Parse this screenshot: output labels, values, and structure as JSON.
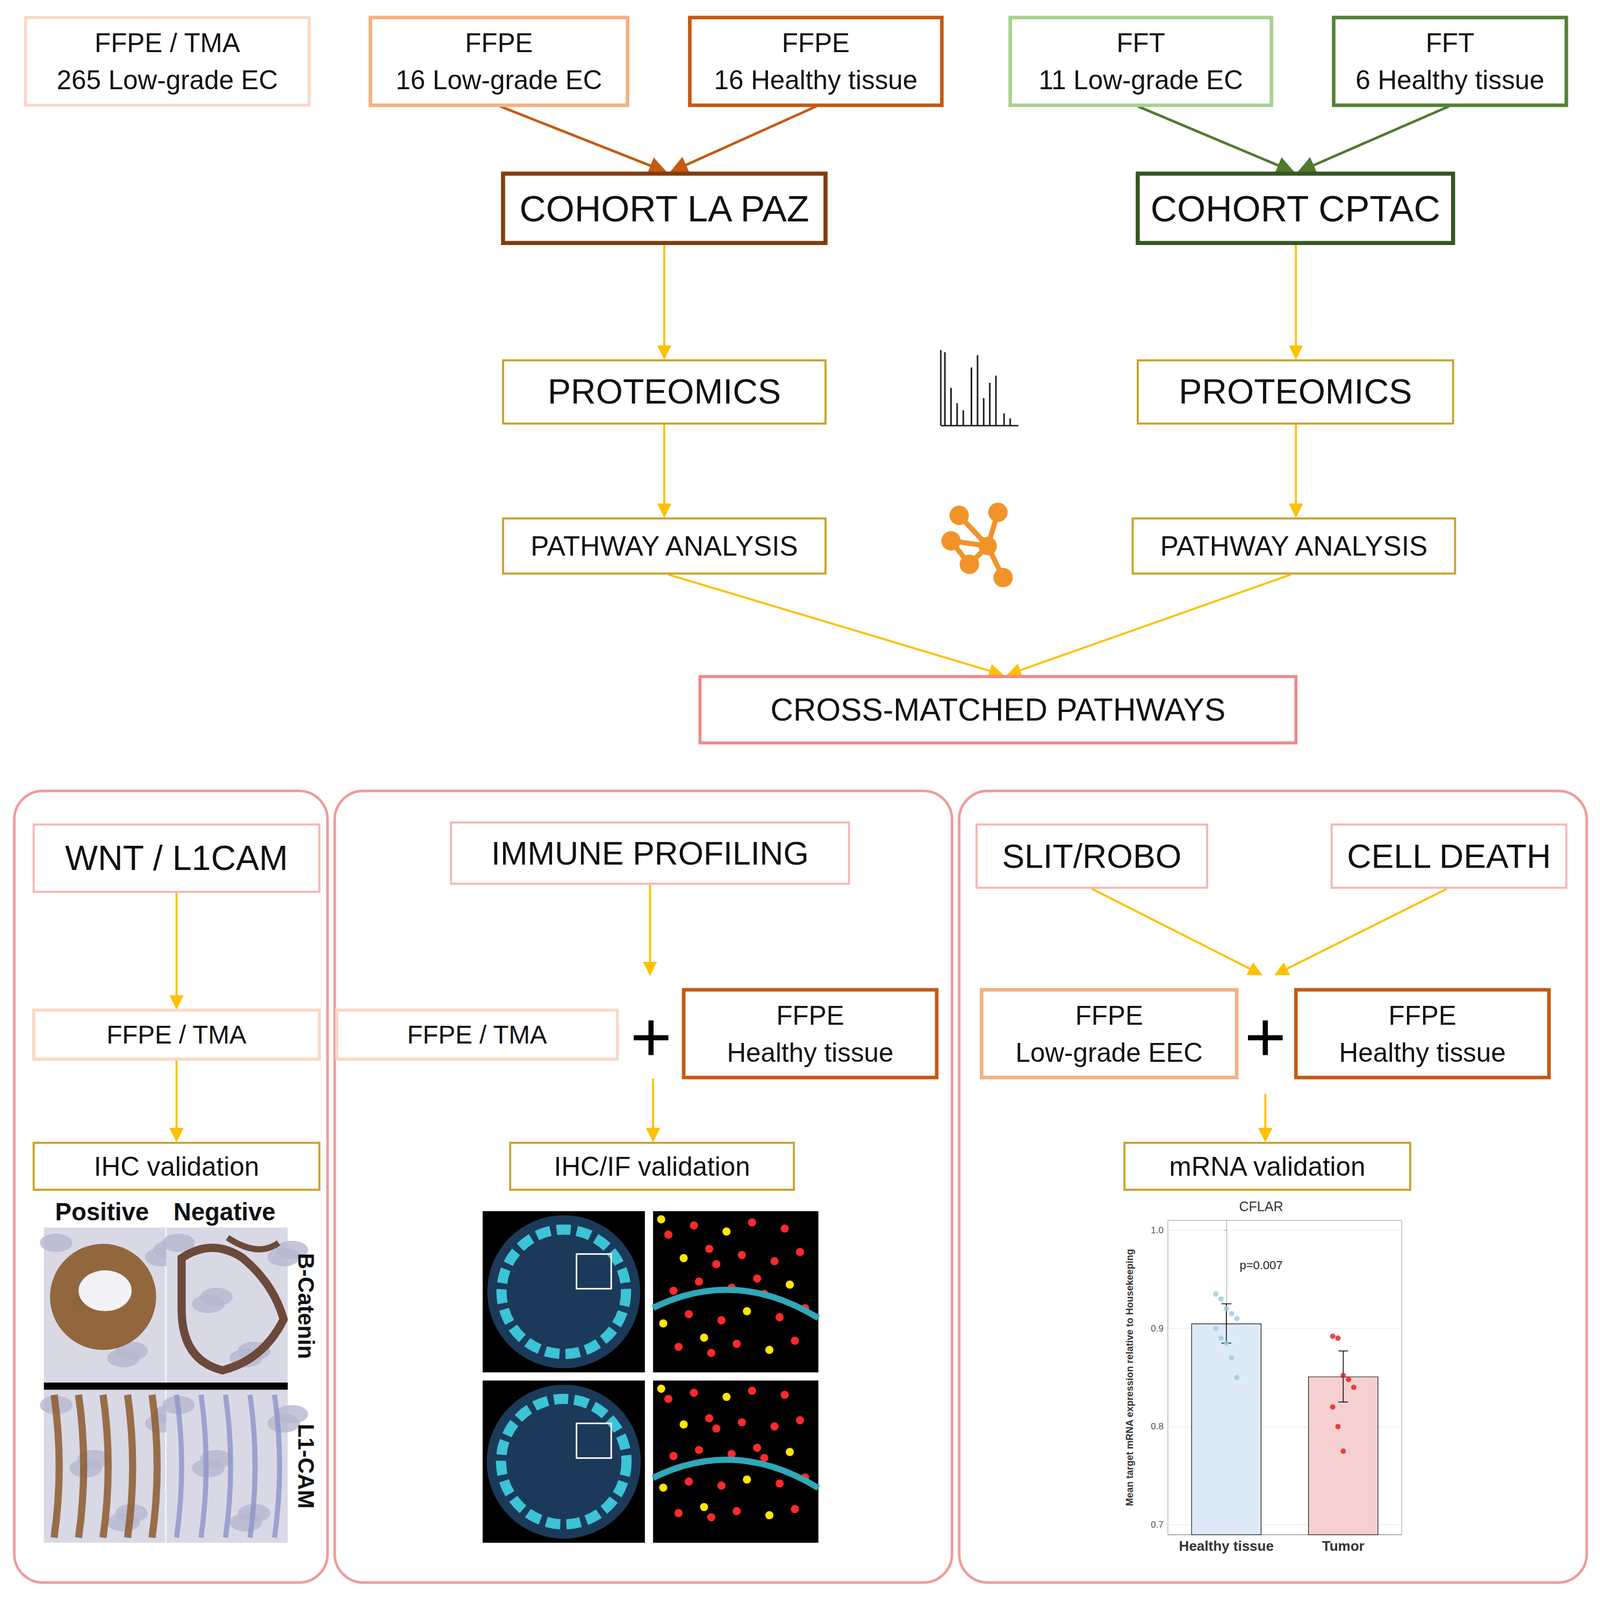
{
  "boxes": {
    "tma265": {
      "lines": [
        "FFPE / TMA",
        "265 Low-grade EC"
      ]
    },
    "ffpe16ec": {
      "lines": [
        "FFPE",
        "16 Low-grade EC"
      ]
    },
    "ffpe16h": {
      "lines": [
        "FFPE",
        "16 Healthy tissue"
      ]
    },
    "fft11": {
      "lines": [
        "FFT",
        "11 Low-grade EC"
      ]
    },
    "fft6": {
      "lines": [
        "FFT",
        "6 Healthy tissue"
      ]
    },
    "lapaz": {
      "lines": [
        "COHORT LA PAZ"
      ]
    },
    "cptac": {
      "lines": [
        "COHORT CPTAC"
      ]
    },
    "prot1": {
      "lines": [
        "PROTEOMICS"
      ]
    },
    "prot2": {
      "lines": [
        "PROTEOMICS"
      ]
    },
    "path1": {
      "lines": [
        "PATHWAY ANALYSIS"
      ]
    },
    "path2": {
      "lines": [
        "PATHWAY ANALYSIS"
      ]
    },
    "cross": {
      "lines": [
        "CROSS-MATCHED PATHWAYS"
      ]
    },
    "wnt": {
      "lines": [
        "WNT / L1CAM"
      ]
    },
    "immune": {
      "lines": [
        "IMMUNE PROFILING"
      ]
    },
    "slit": {
      "lines": [
        "SLIT/ROBO"
      ]
    },
    "death": {
      "lines": [
        "CELL DEATH"
      ]
    },
    "tma2": {
      "lines": [
        "FFPE / TMA"
      ]
    },
    "tma3": {
      "lines": [
        "FFPE / TMA"
      ]
    },
    "healthy2": {
      "lines": [
        "FFPE",
        "Healthy tissue"
      ]
    },
    "eec": {
      "lines": [
        "FFPE",
        "Low-grade EEC"
      ]
    },
    "healthy3": {
      "lines": [
        "FFPE",
        "Healthy tissue"
      ]
    },
    "ihc": {
      "lines": [
        "IHC validation"
      ]
    },
    "ihcif": {
      "lines": [
        "IHC/IF validation"
      ]
    },
    "mrna": {
      "lines": [
        "mRNA validation"
      ]
    }
  },
  "ihc_images": {
    "columns": [
      "Positive",
      "Negative"
    ],
    "rows": [
      "B-Catenin",
      "L1-CAM"
    ]
  },
  "chart_data": {
    "type": "bar",
    "title": "CFLAR",
    "categories": [
      "Healthy tissue",
      "Tumor"
    ],
    "values": [
      0.905,
      0.851
    ],
    "errors": [
      0.02,
      0.026
    ],
    "colors": [
      "#deebf7",
      "#f6d0d0"
    ],
    "points": {
      "values": [
        [
          0.935,
          0.93,
          0.92,
          0.915,
          0.91,
          0.9,
          0.89,
          0.885,
          0.87,
          0.85
        ],
        [
          0.892,
          0.89,
          0.852,
          0.848,
          0.84,
          0.82,
          0.8,
          0.775
        ]
      ],
      "colors": [
        "#9ecae1",
        "#e41a1c"
      ]
    },
    "y_label": "Mean target mRNA expression relative to Housekeeping",
    "ylim": [
      0.69,
      1.01
    ],
    "yticks": [
      0.7,
      0.8,
      0.9,
      {
        "value": 1,
        "label": "1.0"
      }
    ],
    "annotations": [
      {
        "text": "p=0.007"
      }
    ],
    "grid": true
  }
}
